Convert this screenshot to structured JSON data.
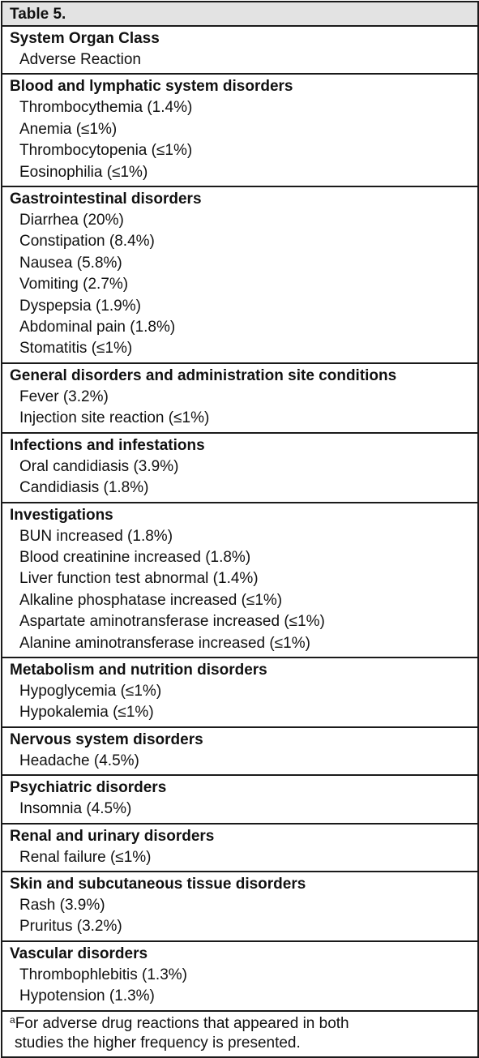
{
  "table": {
    "title": "Table 5.",
    "header": {
      "column1": "System Organ Class",
      "column2": "Adverse Reaction"
    },
    "sections": [
      {
        "name": "Blood and lymphatic system disorders",
        "items": [
          "Thrombocythemia (1.4%)",
          "Anemia (≤1%)",
          "Thrombocytopenia (≤1%)",
          "Eosinophilia (≤1%)"
        ]
      },
      {
        "name": "Gastrointestinal disorders",
        "items": [
          "Diarrhea (20%)",
          "Constipation (8.4%)",
          "Nausea (5.8%)",
          "Vomiting (2.7%)",
          "Dyspepsia (1.9%)",
          "Abdominal pain (1.8%)",
          "Stomatitis (≤1%)"
        ]
      },
      {
        "name": "General disorders and administration site conditions",
        "items": [
          "Fever (3.2%)",
          "Injection site reaction (≤1%)"
        ]
      },
      {
        "name": "Infections and infestations",
        "items": [
          "Oral candidiasis (3.9%)",
          "Candidiasis (1.8%)"
        ]
      },
      {
        "name": "Investigations",
        "items": [
          "BUN increased (1.8%)",
          "Blood creatinine increased (1.8%)",
          "Liver function test abnormal (1.4%)",
          "Alkaline phosphatase increased (≤1%)",
          "Aspartate aminotransferase increased (≤1%)",
          "Alanine aminotransferase increased (≤1%)"
        ]
      },
      {
        "name": "Metabolism and nutrition disorders",
        "items": [
          "Hypoglycemia (≤1%)",
          "Hypokalemia (≤1%)"
        ]
      },
      {
        "name": "Nervous system disorders",
        "items": [
          "Headache (4.5%)"
        ]
      },
      {
        "name": "Psychiatric disorders",
        "items": [
          "Insomnia (4.5%)"
        ]
      },
      {
        "name": "Renal and urinary disorders",
        "items": [
          "Renal failure (≤1%)"
        ]
      },
      {
        "name": "Skin and subcutaneous tissue disorders",
        "items": [
          "Rash (3.9%)",
          "Pruritus (3.2%)"
        ]
      },
      {
        "name": "Vascular disorders",
        "items": [
          "Thrombophlebitis (1.3%)",
          "Hypotension (1.3%)"
        ]
      }
    ],
    "footnote": {
      "marker": "a",
      "line1": "For adverse drug reactions that appeared in both",
      "line2": "studies the higher frequency is presented."
    }
  },
  "colors": {
    "title_background": "#e3e3e3",
    "border": "#1a1a1a",
    "text": "#111111"
  }
}
